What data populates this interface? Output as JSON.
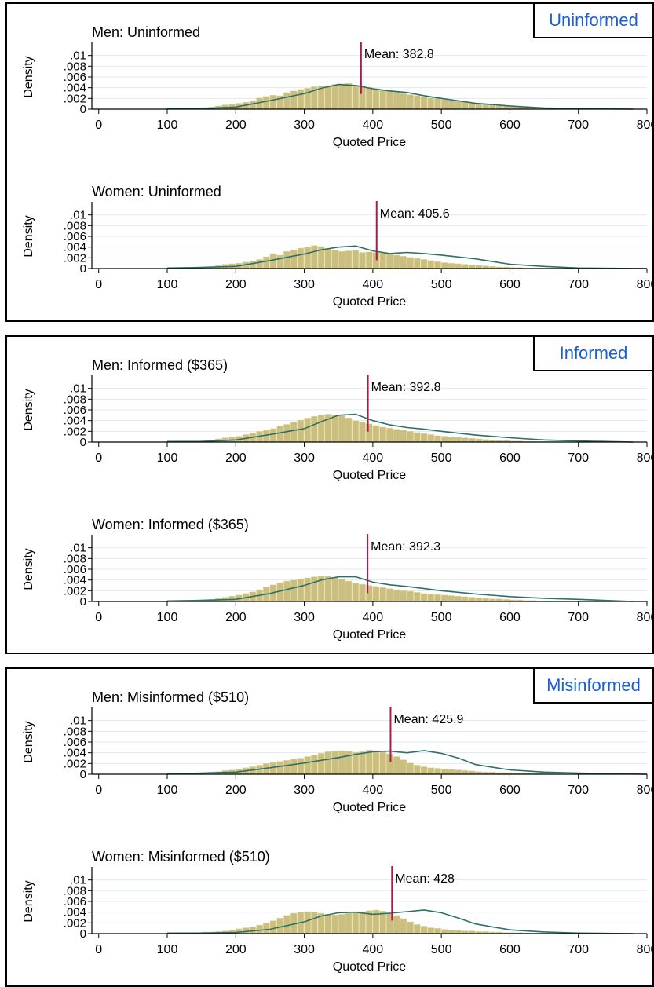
{
  "groups": [
    {
      "label": "Uninformed"
    },
    {
      "label": "Informed"
    },
    {
      "label": "Misinformed"
    }
  ],
  "colors": {
    "bar_fill": "#cbbf7e",
    "bar_stroke": "#e6dfb8",
    "kde": "#2f6f6a",
    "mean": "#b0174a",
    "grid": "#e3e8ec",
    "badge_text": "#1a5fd6"
  },
  "chart_data": [
    {
      "type": "bar",
      "title": "Men: Uninformed",
      "xlabel": "Quoted Price",
      "ylabel": "Density",
      "xlim": [
        -10,
        800
      ],
      "ylim": [
        0,
        0.012
      ],
      "xticks": [
        0,
        100,
        200,
        300,
        400,
        500,
        600,
        700,
        800
      ],
      "yticks": [
        0,
        0.002,
        0.004,
        0.006,
        0.008,
        0.01
      ],
      "ytick_labels": [
        "0",
        ".002",
        ".004",
        ".006",
        ".008",
        ".01"
      ],
      "mean": 382.8,
      "mean_label": "Mean: 382.8",
      "bins": {
        "start": 100,
        "width": 10,
        "values": [
          0.0001,
          0.0001,
          0.0002,
          0.0002,
          0.0002,
          0.0003,
          0.0004,
          0.0006,
          0.0008,
          0.0009,
          0.0011,
          0.0013,
          0.0016,
          0.0021,
          0.0024,
          0.0026,
          0.0025,
          0.0031,
          0.0034,
          0.0037,
          0.0039,
          0.0042,
          0.0043,
          0.0044,
          0.0046,
          0.0047,
          0.0048,
          0.0045,
          0.0043,
          0.0041,
          0.0038,
          0.0036,
          0.0034,
          0.0032,
          0.0029,
          0.0027,
          0.0025,
          0.0023,
          0.0021,
          0.002,
          0.0018,
          0.0016,
          0.0015,
          0.0014,
          0.0012,
          0.0011,
          0.001,
          0.0009,
          0.0007,
          0.0006,
          0.0005,
          0.0004,
          0.0003,
          0.0003,
          0.0002,
          0.0002,
          0.0001,
          0.0001,
          0.0001,
          0.0001
        ]
      },
      "kde": [
        [
          100,
          0.0001
        ],
        [
          150,
          0.0001
        ],
        [
          200,
          0.0004
        ],
        [
          250,
          0.0016
        ],
        [
          300,
          0.0029
        ],
        [
          325,
          0.0039
        ],
        [
          350,
          0.0046
        ],
        [
          375,
          0.0044
        ],
        [
          400,
          0.0038
        ],
        [
          425,
          0.0034
        ],
        [
          450,
          0.0031
        ],
        [
          475,
          0.0025
        ],
        [
          500,
          0.002
        ],
        [
          550,
          0.0011
        ],
        [
          600,
          0.0006
        ],
        [
          650,
          0.0002
        ],
        [
          700,
          0.0001
        ],
        [
          780,
          0.0
        ]
      ]
    },
    {
      "type": "bar",
      "title": "Women: Uninformed",
      "xlabel": "Quoted Price",
      "ylabel": "Density",
      "xlim": [
        -10,
        800
      ],
      "ylim": [
        0,
        0.012
      ],
      "xticks": [
        0,
        100,
        200,
        300,
        400,
        500,
        600,
        700,
        800
      ],
      "yticks": [
        0,
        0.002,
        0.004,
        0.006,
        0.008,
        0.01
      ],
      "ytick_labels": [
        "0",
        ".002",
        ".004",
        ".006",
        ".008",
        ".01"
      ],
      "mean": 405.6,
      "mean_label": "Mean: 405.6",
      "bins": {
        "start": 100,
        "width": 10,
        "values": [
          0.0001,
          0.0001,
          0.0002,
          0.0002,
          0.0003,
          0.0003,
          0.0004,
          0.0006,
          0.0008,
          0.0009,
          0.001,
          0.0012,
          0.0014,
          0.0017,
          0.0022,
          0.0028,
          0.0025,
          0.0032,
          0.0035,
          0.0038,
          0.004,
          0.0043,
          0.0041,
          0.0037,
          0.0034,
          0.0032,
          0.0033,
          0.0034,
          0.003,
          0.0031,
          0.003,
          0.0029,
          0.0027,
          0.0025,
          0.0023,
          0.0021,
          0.0019,
          0.0017,
          0.0015,
          0.0013,
          0.0011,
          0.001,
          0.0009,
          0.0008,
          0.0007,
          0.0006,
          0.0005,
          0.0004,
          0.0003,
          0.0003,
          0.0002,
          0.0002,
          0.0001,
          0.0001,
          0.0001,
          0.0001,
          0.0001,
          0.0001,
          0.0001,
          0.0001
        ]
      },
      "kde": [
        [
          100,
          0.0001
        ],
        [
          150,
          0.0002
        ],
        [
          200,
          0.0004
        ],
        [
          250,
          0.0015
        ],
        [
          300,
          0.0027
        ],
        [
          325,
          0.0035
        ],
        [
          350,
          0.004
        ],
        [
          375,
          0.0042
        ],
        [
          400,
          0.0033
        ],
        [
          425,
          0.0028
        ],
        [
          450,
          0.003
        ],
        [
          475,
          0.0028
        ],
        [
          500,
          0.0025
        ],
        [
          550,
          0.0018
        ],
        [
          600,
          0.0008
        ],
        [
          650,
          0.0004
        ],
        [
          700,
          0.0001
        ],
        [
          800,
          0.0
        ]
      ]
    },
    {
      "type": "bar",
      "title": "Men: Informed ($365)",
      "xlabel": "Quoted Price",
      "ylabel": "Density",
      "xlim": [
        -10,
        800
      ],
      "ylim": [
        0,
        0.012
      ],
      "xticks": [
        0,
        100,
        200,
        300,
        400,
        500,
        600,
        700,
        800
      ],
      "yticks": [
        0,
        0.002,
        0.004,
        0.006,
        0.008,
        0.01
      ],
      "ytick_labels": [
        "0",
        ".002",
        ".004",
        ".006",
        ".008",
        ".01"
      ],
      "mean": 392.8,
      "mean_label": "Mean: 392.8",
      "bins": {
        "start": 100,
        "width": 10,
        "values": [
          0.0001,
          0.0001,
          0.0002,
          0.0002,
          0.0002,
          0.0003,
          0.0004,
          0.0006,
          0.0008,
          0.0009,
          0.0011,
          0.0014,
          0.0017,
          0.002,
          0.0022,
          0.0025,
          0.003,
          0.0033,
          0.0037,
          0.0041,
          0.0045,
          0.0048,
          0.0051,
          0.0052,
          0.0051,
          0.0049,
          0.0045,
          0.004,
          0.0037,
          0.0034,
          0.0031,
          0.0028,
          0.0026,
          0.0024,
          0.0022,
          0.002,
          0.0018,
          0.0016,
          0.0014,
          0.0012,
          0.0011,
          0.001,
          0.0009,
          0.0008,
          0.0007,
          0.0006,
          0.0005,
          0.0004,
          0.0003,
          0.0003,
          0.0002,
          0.0002,
          0.0001,
          0.0001,
          0.0001,
          0.0001,
          0.0001,
          0.0001,
          0.0001,
          0.0001
        ]
      },
      "kde": [
        [
          100,
          0.0001
        ],
        [
          150,
          0.0001
        ],
        [
          200,
          0.0004
        ],
        [
          250,
          0.0014
        ],
        [
          300,
          0.0025
        ],
        [
          325,
          0.0038
        ],
        [
          350,
          0.005
        ],
        [
          375,
          0.0052
        ],
        [
          400,
          0.004
        ],
        [
          425,
          0.0032
        ],
        [
          450,
          0.0027
        ],
        [
          475,
          0.0024
        ],
        [
          500,
          0.002
        ],
        [
          550,
          0.0013
        ],
        [
          600,
          0.0008
        ],
        [
          650,
          0.0004
        ],
        [
          700,
          0.0002
        ],
        [
          780,
          0.0
        ]
      ]
    },
    {
      "type": "bar",
      "title": "Women: Informed ($365)",
      "xlabel": "Quoted Price",
      "ylabel": "Density",
      "xlim": [
        -10,
        800
      ],
      "ylim": [
        0,
        0.012
      ],
      "xticks": [
        0,
        100,
        200,
        300,
        400,
        500,
        600,
        700,
        800
      ],
      "yticks": [
        0,
        0.002,
        0.004,
        0.006,
        0.008,
        0.01
      ],
      "ytick_labels": [
        "0",
        ".002",
        ".004",
        ".006",
        ".008",
        ".01"
      ],
      "mean": 392.3,
      "mean_label": "Mean: 392.3",
      "bins": {
        "start": 100,
        "width": 10,
        "values": [
          0.0001,
          0.0001,
          0.0002,
          0.0002,
          0.0003,
          0.0003,
          0.0004,
          0.0006,
          0.0008,
          0.001,
          0.0012,
          0.0015,
          0.0018,
          0.0022,
          0.0027,
          0.0031,
          0.0035,
          0.0038,
          0.004,
          0.0042,
          0.0044,
          0.0046,
          0.0047,
          0.0047,
          0.0045,
          0.0042,
          0.0038,
          0.0034,
          0.0032,
          0.003,
          0.0028,
          0.0026,
          0.0024,
          0.0022,
          0.002,
          0.0019,
          0.0017,
          0.0015,
          0.0014,
          0.0013,
          0.0012,
          0.0011,
          0.001,
          0.0009,
          0.0008,
          0.0007,
          0.0006,
          0.0005,
          0.0005,
          0.0004,
          0.0003,
          0.0003,
          0.0002,
          0.0002,
          0.0001,
          0.0001,
          0.0001,
          0.0001,
          0.0001,
          0.0001
        ]
      },
      "kde": [
        [
          100,
          0.0001
        ],
        [
          150,
          0.0002
        ],
        [
          200,
          0.0004
        ],
        [
          250,
          0.0015
        ],
        [
          300,
          0.003
        ],
        [
          325,
          0.004
        ],
        [
          350,
          0.0046
        ],
        [
          375,
          0.0046
        ],
        [
          400,
          0.0036
        ],
        [
          425,
          0.0031
        ],
        [
          450,
          0.0028
        ],
        [
          475,
          0.0024
        ],
        [
          500,
          0.002
        ],
        [
          550,
          0.0014
        ],
        [
          600,
          0.0009
        ],
        [
          650,
          0.0006
        ],
        [
          700,
          0.0004
        ],
        [
          780,
          0.0
        ]
      ]
    },
    {
      "type": "bar",
      "title": "Men: Misinformed ($510)",
      "xlabel": "Quoted Price",
      "ylabel": "Density",
      "xlim": [
        -10,
        800
      ],
      "ylim": [
        0,
        0.012
      ],
      "xticks": [
        0,
        100,
        200,
        300,
        400,
        500,
        600,
        700,
        800
      ],
      "yticks": [
        0,
        0.002,
        0.004,
        0.006,
        0.008,
        0.01
      ],
      "ytick_labels": [
        "0",
        ".002",
        ".004",
        ".006",
        ".008",
        ".01"
      ],
      "mean": 425.9,
      "mean_label": "Mean: 425.9",
      "bins": {
        "start": 100,
        "width": 10,
        "values": [
          0.0001,
          0.0001,
          0.0002,
          0.0002,
          0.0002,
          0.0003,
          0.0004,
          0.0005,
          0.0007,
          0.0008,
          0.001,
          0.0012,
          0.0014,
          0.0017,
          0.002,
          0.0022,
          0.0024,
          0.0026,
          0.0028,
          0.003,
          0.0033,
          0.0036,
          0.0039,
          0.0042,
          0.0043,
          0.0044,
          0.0043,
          0.0041,
          0.0042,
          0.0045,
          0.0044,
          0.0041,
          0.0038,
          0.0033,
          0.0027,
          0.0021,
          0.0017,
          0.0014,
          0.0012,
          0.0011,
          0.001,
          0.0009,
          0.0008,
          0.0007,
          0.0006,
          0.0005,
          0.0004,
          0.0004,
          0.0003,
          0.0003,
          0.0002,
          0.0002,
          0.0002,
          0.0001,
          0.0001,
          0.0001,
          0.0001,
          0.0001,
          0.0001,
          0.0001
        ]
      },
      "kde": [
        [
          100,
          0.0001
        ],
        [
          150,
          0.0002
        ],
        [
          200,
          0.0004
        ],
        [
          250,
          0.0012
        ],
        [
          300,
          0.0021
        ],
        [
          350,
          0.0031
        ],
        [
          375,
          0.0037
        ],
        [
          400,
          0.0042
        ],
        [
          425,
          0.0043
        ],
        [
          450,
          0.004
        ],
        [
          475,
          0.0044
        ],
        [
          500,
          0.0039
        ],
        [
          525,
          0.003
        ],
        [
          550,
          0.0018
        ],
        [
          600,
          0.0008
        ],
        [
          650,
          0.0004
        ],
        [
          700,
          0.0002
        ],
        [
          800,
          0.0
        ]
      ]
    },
    {
      "type": "bar",
      "title": "Women: Misinformed ($510)",
      "xlabel": "Quoted Price",
      "ylabel": "Density",
      "xlim": [
        -10,
        800
      ],
      "ylim": [
        0,
        0.012
      ],
      "xticks": [
        0,
        100,
        200,
        300,
        400,
        500,
        600,
        700,
        800
      ],
      "yticks": [
        0,
        0.002,
        0.004,
        0.006,
        0.008,
        0.01
      ],
      "ytick_labels": [
        "0",
        ".002",
        ".004",
        ".006",
        ".008",
        ".01"
      ],
      "mean": 428,
      "mean_label": "Mean: 428",
      "bins": {
        "start": 100,
        "width": 10,
        "values": [
          0.0001,
          0.0001,
          0.0001,
          0.0002,
          0.0002,
          0.0003,
          0.0003,
          0.0004,
          0.0005,
          0.0007,
          0.0009,
          0.0011,
          0.0013,
          0.0016,
          0.002,
          0.0024,
          0.0029,
          0.0034,
          0.0038,
          0.004,
          0.0041,
          0.004,
          0.0038,
          0.0036,
          0.0035,
          0.0036,
          0.0038,
          0.0039,
          0.0041,
          0.0043,
          0.0044,
          0.0042,
          0.0039,
          0.0034,
          0.0028,
          0.0022,
          0.0017,
          0.0014,
          0.0011,
          0.001,
          0.0008,
          0.0007,
          0.0006,
          0.0005,
          0.0005,
          0.0004,
          0.0004,
          0.0003,
          0.0003,
          0.0002,
          0.0002,
          0.0002,
          0.0001,
          0.0001,
          0.0001,
          0.0001,
          0.0001,
          0.0001,
          0.0001,
          0.0001
        ]
      },
      "kde": [
        [
          100,
          0.0001
        ],
        [
          150,
          0.0001
        ],
        [
          200,
          0.0002
        ],
        [
          250,
          0.0008
        ],
        [
          300,
          0.0022
        ],
        [
          325,
          0.0033
        ],
        [
          350,
          0.0039
        ],
        [
          375,
          0.004
        ],
        [
          400,
          0.0036
        ],
        [
          425,
          0.0038
        ],
        [
          450,
          0.0041
        ],
        [
          475,
          0.0044
        ],
        [
          500,
          0.0039
        ],
        [
          525,
          0.0029
        ],
        [
          550,
          0.0018
        ],
        [
          600,
          0.0007
        ],
        [
          650,
          0.0003
        ],
        [
          700,
          0.0001
        ],
        [
          780,
          0.0
        ]
      ]
    }
  ]
}
